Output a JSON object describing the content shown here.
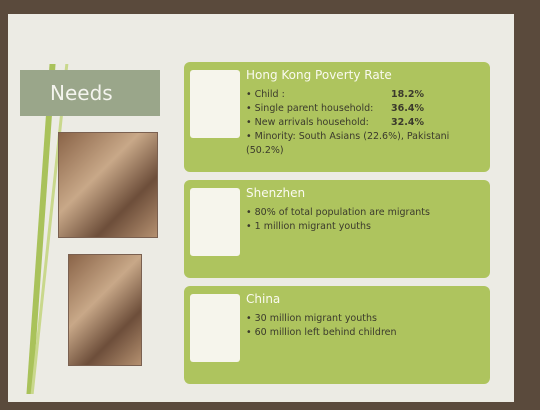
{
  "slide": {
    "title": "Needs",
    "sections": [
      {
        "heading": "Hong Kong Poverty Rate",
        "items": [
          {
            "label": "Child :",
            "value": "18.2%"
          },
          {
            "label": "Single parent household:",
            "value": "36.4%"
          },
          {
            "label": "New arrivals household:",
            "value": "32.4%"
          },
          {
            "label": "Minority: South Asians (22.6%), Pakistani (50.2%)"
          }
        ]
      },
      {
        "heading": "Shenzhen",
        "items": [
          {
            "label": "80% of total population are migrants"
          },
          {
            "label": "1 million migrant youths"
          }
        ]
      },
      {
        "heading": "China",
        "items": [
          {
            "label": "30 million migrant youths"
          },
          {
            "label": "60 million left behind children"
          }
        ]
      }
    ]
  }
}
